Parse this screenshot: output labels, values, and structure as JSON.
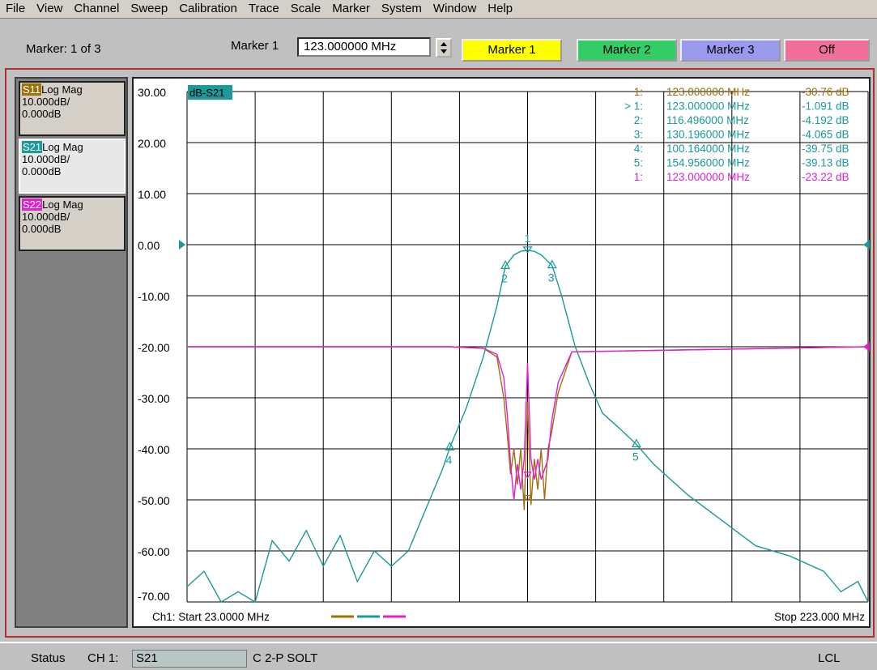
{
  "menu": [
    "File",
    "View",
    "Channel",
    "Sweep",
    "Calibration",
    "Trace",
    "Scale",
    "Marker",
    "System",
    "Window",
    "Help"
  ],
  "toolbar": {
    "marker_count": "Marker: 1 of 3",
    "marker_field_label": "Marker 1",
    "marker_field_value": "123.000000 MHz",
    "buttons": {
      "marker1": "Marker 1",
      "marker2": "Marker 2",
      "marker3": "Marker 3",
      "off": "Off"
    },
    "button_colors": {
      "marker1": "#ffff00",
      "marker2": "#33cc66",
      "marker3": "#9999ee",
      "off": "#f0709a"
    }
  },
  "traces": [
    {
      "tag": "S11",
      "format": "Log Mag",
      "scale": "10.000dB/",
      "ref": "0.000dB",
      "color": "#a0700a"
    },
    {
      "tag": "S21",
      "format": "Log Mag",
      "scale": "10.000dB/",
      "ref": "0.000dB",
      "color": "#1a9a9a"
    },
    {
      "tag": "S22",
      "format": "Log Mag",
      "scale": "10.000dB/",
      "ref": "0.000dB",
      "color": "#e020d0"
    }
  ],
  "plot": {
    "active_trace_label": "dB-S21",
    "footer_start": "Ch1: Start  23.0000 MHz",
    "footer_stop": "Stop  223.000 MHz"
  },
  "markers_table": [
    {
      "id": "1:",
      "freq": "123.000000 MHz",
      "value": "-30.76 dB",
      "color": "#a0700a"
    },
    {
      "id": "> 1:",
      "freq": "123.000000 MHz",
      "value": "-1.091 dB",
      "color": "#1a9a9a"
    },
    {
      "id": "2:",
      "freq": "116.496000 MHz",
      "value": "-4.192 dB",
      "color": "#1a9a9a"
    },
    {
      "id": "3:",
      "freq": "130.196000 MHz",
      "value": "-4.065 dB",
      "color": "#1a9a9a"
    },
    {
      "id": "4:",
      "freq": "100.164000 MHz",
      "value": "-39.75 dB",
      "color": "#1a9a9a"
    },
    {
      "id": "5:",
      "freq": "154.956000 MHz",
      "value": "-39.13 dB",
      "color": "#1a9a9a"
    },
    {
      "id": "1:",
      "freq": "123.000000 MHz",
      "value": "-23.22 dB",
      "color": "#e020d0"
    }
  ],
  "chart_data": {
    "type": "line",
    "x_unit": "MHz",
    "xlim": [
      23,
      223
    ],
    "ylim": [
      -70,
      30
    ],
    "y_ticks": [
      "30.00",
      "20.00",
      "10.00",
      "0.00",
      "-10.00",
      "-20.00",
      "-30.00",
      "-40.00",
      "-50.00",
      "-60.00",
      "-70.00"
    ],
    "grid": true,
    "series": [
      {
        "name": "S21",
        "color": "#1a9a9a",
        "x": [
          23,
          28,
          33,
          38,
          43,
          48,
          53,
          58,
          63,
          68,
          73,
          78,
          83,
          88,
          93,
          98,
          100.164,
          105,
          110,
          114,
          116.496,
          119,
          121,
          123,
          125,
          127,
          130.196,
          133,
          137,
          141,
          145,
          150,
          154.956,
          160,
          170,
          180,
          190,
          200,
          210,
          215,
          220,
          223
        ],
        "y": [
          -67,
          -64,
          -70,
          -68,
          -70,
          -58,
          -62,
          -56,
          -63,
          -57,
          -66,
          -60,
          -63,
          -60,
          -52,
          -44,
          -39.75,
          -32,
          -22,
          -12,
          -4.192,
          -2,
          -1.3,
          -1.091,
          -1.3,
          -2,
          -4.065,
          -10,
          -20,
          -27,
          -33,
          -36,
          -39.13,
          -43,
          -49,
          -54,
          -59,
          -61,
          -64,
          -68,
          -66,
          -70
        ]
      },
      {
        "name": "S11",
        "color": "#a0700a",
        "x": [
          23,
          60,
          100,
          110,
          114,
          116,
          117,
          118,
          119,
          120,
          121,
          122,
          123,
          124,
          125,
          126,
          127,
          128,
          129,
          130,
          132,
          136,
          223
        ],
        "y": [
          -20,
          -20,
          -20,
          -20.3,
          -22,
          -30,
          -37,
          -45,
          -40,
          -47,
          -40,
          -52,
          -30.76,
          -51,
          -42,
          -48,
          -40,
          -50,
          -40,
          -37,
          -29,
          -21,
          -20
        ]
      },
      {
        "name": "S22",
        "color": "#e020d0",
        "x": [
          23,
          60,
          100,
          110,
          114,
          116,
          117,
          118,
          119,
          120,
          121,
          122,
          123,
          124,
          125,
          126,
          127,
          128,
          129,
          130,
          132,
          136,
          223
        ],
        "y": [
          -20,
          -20,
          -20,
          -20.3,
          -21.5,
          -26,
          -33,
          -43,
          -50,
          -43,
          -48,
          -42,
          -23.22,
          -42,
          -46,
          -42,
          -46,
          -44,
          -42,
          -35,
          -27,
          -21,
          -20
        ]
      }
    ],
    "trace_markers": [
      {
        "label": "1",
        "x": 123,
        "y": -1.091
      },
      {
        "label": "2",
        "x": 116.496,
        "y": -4.192
      },
      {
        "label": "3",
        "x": 130.196,
        "y": -4.065
      },
      {
        "label": "4",
        "x": 100.164,
        "y": -39.75
      },
      {
        "label": "5",
        "x": 154.956,
        "y": -39.13
      }
    ]
  },
  "status": {
    "label": "Status",
    "channel": "CH 1:",
    "field": "S21",
    "cal": "C  2-P SOLT",
    "lcl": "LCL"
  }
}
